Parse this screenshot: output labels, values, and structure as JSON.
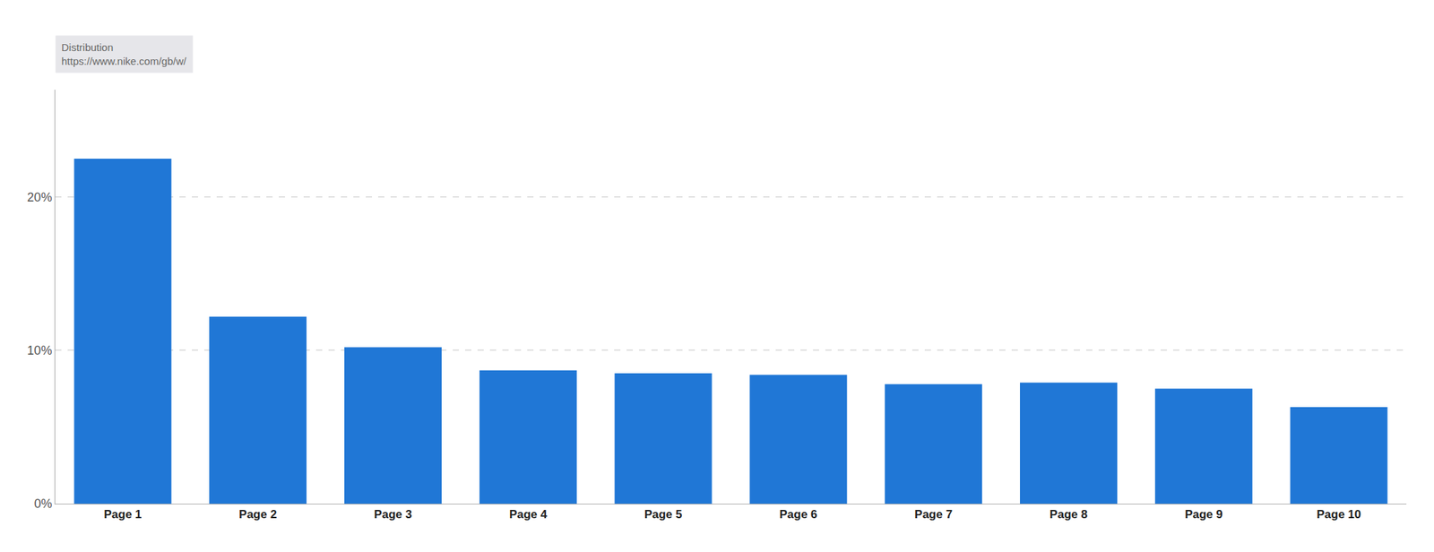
{
  "chart_data": {
    "type": "bar",
    "categories": [
      "Page 1",
      "Page 2",
      "Page 3",
      "Page 4",
      "Page 5",
      "Page 6",
      "Page 7",
      "Page 8",
      "Page 9",
      "Page 10"
    ],
    "values": [
      22.5,
      12.2,
      10.2,
      8.7,
      8.5,
      8.4,
      7.8,
      7.9,
      7.5,
      6.3
    ],
    "color": "#2077d6",
    "ylim": [
      0,
      27
    ],
    "yticks": [
      {
        "value": 0,
        "label": "0%"
      },
      {
        "value": 10,
        "label": "10%"
      },
      {
        "value": 20,
        "label": "20%"
      }
    ],
    "grid": true,
    "annotations": [
      "Distribution",
      "https://www.nike.com/gb/w/"
    ]
  }
}
